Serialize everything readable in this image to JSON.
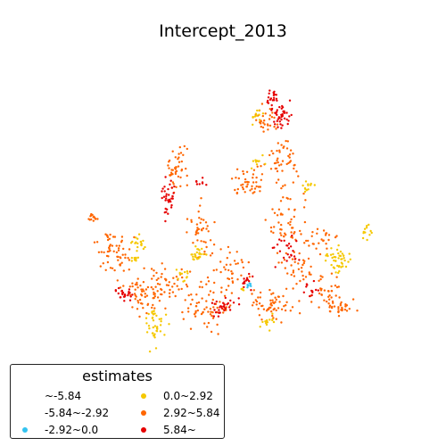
{
  "title": "Intercept_2013",
  "legend": {
    "title": "estimates",
    "items": [
      {
        "label": "~-5.84",
        "color": "#2b8cbe",
        "shown": false
      },
      {
        "label": "-5.84~-2.92",
        "color": "#5ab4e0",
        "shown": false
      },
      {
        "label": "-2.92~0.0",
        "color": "#33c3f0",
        "shown": true
      },
      {
        "label": "0.0~2.92",
        "color": "#f5c800",
        "shown": true
      },
      {
        "label": "2.92~5.84",
        "color": "#ff6600",
        "shown": true
      },
      {
        "label": "5.84~",
        "color": "#e60000",
        "shown": true
      }
    ]
  },
  "chart_data": {
    "type": "scatter",
    "title": "Intercept_2013",
    "legend_title": "estimates",
    "legend_placement": "bottom-left",
    "axes_visible": false,
    "classes": [
      "~-5.84",
      "-5.84~-2.92",
      "-2.92~0.0",
      "0.0~2.92",
      "2.92~5.84",
      "5.84~"
    ]
  }
}
